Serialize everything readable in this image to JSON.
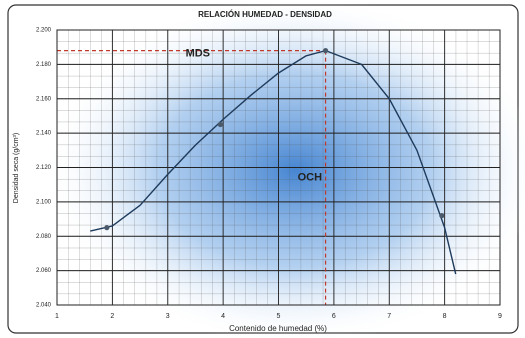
{
  "chart_data": {
    "type": "line",
    "title": "RELACIÓN HUMEDAD - DENSIDAD",
    "x_label": "Contenido de humedad (%)",
    "y_label": "Densidad seca (g/cm³)",
    "xlim": [
      1,
      9
    ],
    "xticks": [
      1,
      2,
      3,
      4,
      5,
      6,
      7,
      8,
      9
    ],
    "ylim": [
      2.04,
      2.2
    ],
    "yticks": [
      {
        "value": 2.04,
        "label": "2.040"
      },
      {
        "value": 2.06,
        "label": "2.060"
      },
      {
        "value": 2.08,
        "label": "2.080"
      },
      {
        "value": 2.1,
        "label": "2.100"
      },
      {
        "value": 2.12,
        "label": "2.120"
      },
      {
        "value": 2.14,
        "label": "2.140"
      },
      {
        "value": 2.16,
        "label": "2.160"
      },
      {
        "value": 2.18,
        "label": "2.180"
      },
      {
        "value": 2.2,
        "label": "2.200"
      }
    ],
    "grid": true,
    "curve": {
      "color": "#1f3b5c",
      "x": [
        1.6,
        2.0,
        2.5,
        3.0,
        3.5,
        4.0,
        4.5,
        5.0,
        5.5,
        5.85,
        6.5,
        7.0,
        7.5,
        8.0,
        8.2
      ],
      "values": [
        2.083,
        2.086,
        2.098,
        2.116,
        2.133,
        2.148,
        2.162,
        2.175,
        2.185,
        2.188,
        2.18,
        2.16,
        2.13,
        2.085,
        2.058
      ]
    },
    "points": {
      "color": "#4a5a6a",
      "x": [
        1.9,
        3.95,
        5.85,
        7.95
      ],
      "values": [
        2.085,
        2.145,
        2.188,
        2.092
      ]
    },
    "mds": {
      "text": "MDS",
      "value": 2.188
    },
    "och": {
      "text": "OCH",
      "value": 5.85
    },
    "reference_color": "#c0392b"
  }
}
